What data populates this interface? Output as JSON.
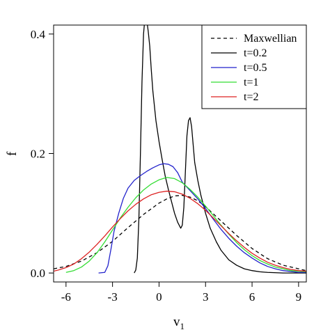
{
  "chart_data": {
    "type": "line",
    "title": "",
    "xlabel": "v",
    "xlabel_subscript": "1",
    "ylabel": "f",
    "xlim": [
      -6.8,
      9.5
    ],
    "ylim": [
      -0.015,
      0.415
    ],
    "xticks": [
      -6,
      -3,
      0,
      3,
      6,
      9
    ],
    "xtick_labels": [
      "-6",
      "-3",
      "0",
      "3",
      "6",
      "9"
    ],
    "yticks": [
      0.0,
      0.2,
      0.4
    ],
    "ytick_labels": [
      "0.0",
      "0.2",
      "0.4"
    ],
    "grid": false,
    "legend_position": "top-right",
    "series": [
      {
        "name": "Maxwellian",
        "color": "#000000",
        "dash": "dashed",
        "x": [
          -6.8,
          -6,
          -5,
          -4,
          -3,
          -2,
          -1,
          0,
          0.5,
          1,
          1.5,
          2,
          2.5,
          3,
          4,
          5,
          6,
          7,
          8,
          9.5
        ],
        "y": [
          0.007,
          0.011,
          0.02,
          0.034,
          0.053,
          0.076,
          0.098,
          0.117,
          0.124,
          0.129,
          0.13,
          0.127,
          0.121,
          0.111,
          0.087,
          0.063,
          0.041,
          0.024,
          0.013,
          0.004
        ]
      },
      {
        "name": "t=0.2",
        "color": "#000000",
        "dash": "solid",
        "x": [
          -1.6,
          -1.5,
          -1.4,
          -1.3,
          -1.2,
          -1.1,
          -1.0,
          -0.9,
          -0.8,
          -0.7,
          -0.6,
          -0.5,
          -0.4,
          -0.2,
          0,
          0.2,
          0.4,
          0.6,
          0.8,
          1.0,
          1.2,
          1.4,
          1.5,
          1.6,
          1.7,
          1.8,
          1.9,
          2.0,
          2.1,
          2.2,
          2.3,
          2.5,
          2.7,
          3.0,
          3.3,
          3.7,
          4.0,
          4.5,
          5.0,
          5.5,
          6.0,
          6.5,
          7.0,
          8.0,
          9.5
        ],
        "y": [
          0.0,
          0.005,
          0.025,
          0.09,
          0.2,
          0.32,
          0.4,
          0.43,
          0.425,
          0.405,
          0.38,
          0.34,
          0.305,
          0.255,
          0.22,
          0.19,
          0.162,
          0.14,
          0.12,
          0.1,
          0.085,
          0.075,
          0.08,
          0.11,
          0.17,
          0.23,
          0.255,
          0.26,
          0.245,
          0.215,
          0.185,
          0.155,
          0.13,
          0.1,
          0.075,
          0.052,
          0.038,
          0.022,
          0.013,
          0.007,
          0.004,
          0.002,
          0.001,
          0.0,
          0.0
        ]
      },
      {
        "name": "t=0.5",
        "color": "#2222cc",
        "dash": "solid",
        "x": [
          -3.9,
          -3.5,
          -3.3,
          -3.1,
          -2.9,
          -2.6,
          -2.3,
          -2.0,
          -1.6,
          -1.2,
          -0.8,
          -0.4,
          0,
          0.3,
          0.6,
          0.9,
          1.2,
          1.5,
          2.0,
          2.5,
          3.0,
          3.5,
          4.0,
          4.5,
          5.0,
          5.5,
          6.0,
          6.5,
          7.0,
          7.5,
          8.0,
          9.0,
          9.5
        ],
        "y": [
          0.0,
          0.001,
          0.012,
          0.04,
          0.07,
          0.1,
          0.125,
          0.142,
          0.155,
          0.163,
          0.17,
          0.176,
          0.181,
          0.183,
          0.182,
          0.178,
          0.168,
          0.152,
          0.138,
          0.124,
          0.108,
          0.09,
          0.073,
          0.058,
          0.045,
          0.034,
          0.025,
          0.017,
          0.011,
          0.007,
          0.004,
          0.001,
          0.001
        ]
      },
      {
        "name": "t=1",
        "color": "#33dd33",
        "dash": "solid",
        "x": [
          -6.0,
          -5.5,
          -5.0,
          -4.5,
          -4.0,
          -3.5,
          -3.0,
          -2.5,
          -2.0,
          -1.5,
          -1.0,
          -0.5,
          0,
          0.5,
          1.0,
          1.5,
          2.0,
          2.5,
          3.0,
          3.5,
          4.0,
          4.5,
          5.0,
          5.5,
          6.0,
          6.5,
          7.0,
          7.5,
          8.0,
          8.5,
          9.0,
          9.5
        ],
        "y": [
          0.001,
          0.004,
          0.01,
          0.02,
          0.034,
          0.052,
          0.072,
          0.092,
          0.11,
          0.126,
          0.139,
          0.149,
          0.156,
          0.16,
          0.158,
          0.151,
          0.14,
          0.127,
          0.112,
          0.096,
          0.08,
          0.065,
          0.051,
          0.039,
          0.029,
          0.021,
          0.015,
          0.01,
          0.007,
          0.004,
          0.003,
          0.002
        ]
      },
      {
        "name": "t=2",
        "color": "#dd2222",
        "dash": "solid",
        "x": [
          -6.8,
          -6.5,
          -6.0,
          -5.5,
          -5.0,
          -4.5,
          -4.0,
          -3.5,
          -3.0,
          -2.5,
          -2.0,
          -1.5,
          -1.0,
          -0.5,
          0,
          0.5,
          1.0,
          1.5,
          2.0,
          2.5,
          3.0,
          3.5,
          4.0,
          4.5,
          5.0,
          5.5,
          6.0,
          6.5,
          7.0,
          7.5,
          8.0,
          8.5,
          9.0,
          9.5
        ],
        "y": [
          0.003,
          0.005,
          0.009,
          0.015,
          0.024,
          0.035,
          0.048,
          0.062,
          0.077,
          0.091,
          0.104,
          0.115,
          0.124,
          0.131,
          0.135,
          0.137,
          0.136,
          0.132,
          0.125,
          0.116,
          0.105,
          0.092,
          0.079,
          0.066,
          0.054,
          0.043,
          0.033,
          0.025,
          0.018,
          0.013,
          0.009,
          0.006,
          0.004,
          0.003
        ]
      }
    ]
  }
}
